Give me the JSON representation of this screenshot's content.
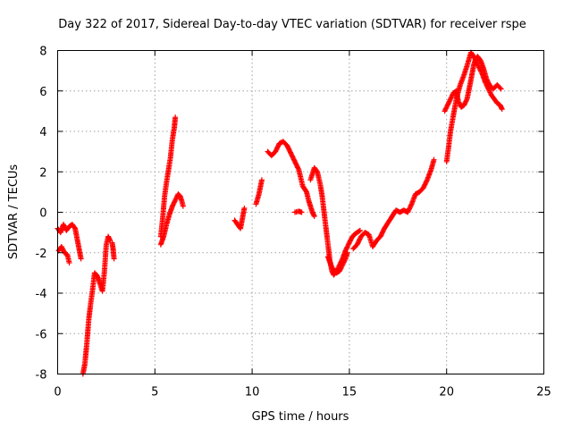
{
  "chart_data": {
    "type": "scatter",
    "title": "Day 322 of 2017, Sidereal Day-to-day VTEC variation (SDTVAR) for receiver rspe",
    "xlabel": "GPS time / hours",
    "ylabel": "SDTVAR / TECUs",
    "xlim": [
      0,
      25
    ],
    "ylim": [
      -8,
      8
    ],
    "x_ticks": [
      0,
      5,
      10,
      15,
      20,
      25
    ],
    "x_tick_labels": [
      "0",
      "5",
      "10",
      "15",
      "20",
      "25"
    ],
    "y_ticks": [
      -8,
      -6,
      -4,
      -2,
      0,
      2,
      4,
      6,
      8
    ],
    "y_tick_labels": [
      "-8",
      "-6",
      "-4",
      "-2",
      "0",
      "2",
      "4",
      "6",
      "8"
    ],
    "grid": true,
    "marker": "+",
    "series": [
      {
        "name": "SDTVAR",
        "color": "#ff0000",
        "segments": [
          {
            "points": [
              [
                0.0,
                -0.8
              ],
              [
                0.15,
                -1.0
              ],
              [
                0.3,
                -0.6
              ],
              [
                0.45,
                -0.9
              ],
              [
                0.6,
                -0.7
              ],
              [
                0.75,
                -0.6
              ],
              [
                0.9,
                -0.8
              ],
              [
                1.0,
                -1.3
              ],
              [
                1.1,
                -1.8
              ],
              [
                1.2,
                -2.3
              ]
            ]
          },
          {
            "points": [
              [
                0.05,
                -1.9
              ],
              [
                0.2,
                -1.7
              ],
              [
                0.35,
                -2.0
              ],
              [
                0.5,
                -2.1
              ],
              [
                0.6,
                -2.5
              ]
            ]
          },
          {
            "points": [
              [
                1.3,
                -8.0
              ],
              [
                1.4,
                -7.5
              ],
              [
                1.5,
                -6.5
              ],
              [
                1.6,
                -5.3
              ],
              [
                1.7,
                -4.5
              ],
              [
                1.8,
                -3.8
              ],
              [
                1.9,
                -3.0
              ],
              [
                2.0,
                -3.1
              ],
              [
                2.1,
                -3.3
              ],
              [
                2.2,
                -3.6
              ],
              [
                2.3,
                -3.9
              ],
              [
                2.4,
                -3.0
              ],
              [
                2.5,
                -1.6
              ],
              [
                2.6,
                -1.2
              ],
              [
                2.7,
                -1.4
              ]
            ]
          },
          {
            "points": [
              [
                2.8,
                -1.5
              ],
              [
                2.85,
                -1.8
              ],
              [
                2.9,
                -2.3
              ]
            ]
          },
          {
            "points": [
              [
                5.3,
                -1.2
              ],
              [
                5.4,
                -0.3
              ],
              [
                5.5,
                0.8
              ],
              [
                5.6,
                1.5
              ],
              [
                5.7,
                2.1
              ],
              [
                5.8,
                2.7
              ],
              [
                5.9,
                3.6
              ],
              [
                6.0,
                4.2
              ],
              [
                6.05,
                4.7
              ]
            ]
          },
          {
            "points": [
              [
                5.3,
                -1.6
              ],
              [
                5.45,
                -1.2
              ],
              [
                5.6,
                -0.6
              ],
              [
                5.75,
                -0.1
              ],
              [
                5.9,
                0.3
              ],
              [
                6.05,
                0.6
              ],
              [
                6.2,
                0.9
              ],
              [
                6.3,
                0.8
              ],
              [
                6.4,
                0.5
              ],
              [
                6.45,
                0.3
              ]
            ]
          },
          {
            "points": [
              [
                9.1,
                -0.4
              ],
              [
                9.25,
                -0.6
              ],
              [
                9.4,
                -0.8
              ],
              [
                9.5,
                -0.3
              ],
              [
                9.6,
                0.2
              ]
            ]
          },
          {
            "points": [
              [
                10.2,
                0.4
              ],
              [
                10.35,
                0.9
              ],
              [
                10.5,
                1.6
              ]
            ]
          },
          {
            "points": [
              [
                10.8,
                3.0
              ],
              [
                11.0,
                2.8
              ],
              [
                11.2,
                3.0
              ],
              [
                11.4,
                3.4
              ],
              [
                11.6,
                3.5
              ],
              [
                11.8,
                3.3
              ],
              [
                12.0,
                2.9
              ],
              [
                12.2,
                2.5
              ],
              [
                12.4,
                2.1
              ],
              [
                12.5,
                1.7
              ],
              [
                12.6,
                1.3
              ],
              [
                12.8,
                1.0
              ],
              [
                12.9,
                0.6
              ],
              [
                13.0,
                0.3
              ],
              [
                13.1,
                0.0
              ],
              [
                13.2,
                -0.2
              ]
            ]
          },
          {
            "points": [
              [
                12.2,
                0.0
              ],
              [
                12.4,
                0.05
              ],
              [
                12.55,
                0.0
              ]
            ]
          },
          {
            "points": [
              [
                13.0,
                1.6
              ],
              [
                13.2,
                2.2
              ],
              [
                13.35,
                2.0
              ],
              [
                13.5,
                1.4
              ],
              [
                13.6,
                0.8
              ],
              [
                13.7,
                0.0
              ],
              [
                13.8,
                -0.8
              ],
              [
                13.9,
                -1.6
              ],
              [
                14.0,
                -2.4
              ],
              [
                14.1,
                -2.9
              ],
              [
                14.2,
                -3.1
              ],
              [
                14.35,
                -2.9
              ],
              [
                14.5,
                -2.6
              ],
              [
                14.65,
                -2.3
              ],
              [
                14.8,
                -1.9
              ],
              [
                14.95,
                -1.6
              ],
              [
                15.1,
                -1.3
              ],
              [
                15.25,
                -1.1
              ],
              [
                15.4,
                -1.0
              ],
              [
                15.55,
                -0.9
              ]
            ]
          },
          {
            "points": [
              [
                13.9,
                -2.2
              ],
              [
                14.05,
                -2.6
              ],
              [
                14.2,
                -2.9
              ],
              [
                14.35,
                -3.0
              ],
              [
                14.5,
                -2.9
              ],
              [
                14.65,
                -2.6
              ],
              [
                14.8,
                -2.3
              ],
              [
                14.9,
                -2.0
              ]
            ]
          },
          {
            "points": [
              [
                15.2,
                -1.8
              ],
              [
                15.4,
                -1.6
              ],
              [
                15.6,
                -1.2
              ],
              [
                15.8,
                -1.0
              ],
              [
                16.0,
                -1.1
              ],
              [
                16.2,
                -1.7
              ],
              [
                16.4,
                -1.4
              ],
              [
                16.6,
                -1.2
              ],
              [
                16.8,
                -0.8
              ],
              [
                17.0,
                -0.5
              ],
              [
                17.2,
                -0.2
              ],
              [
                17.4,
                0.1
              ],
              [
                17.6,
                0.0
              ],
              [
                17.8,
                0.1
              ],
              [
                18.0,
                0.0
              ],
              [
                18.2,
                0.4
              ],
              [
                18.4,
                0.9
              ],
              [
                18.6,
                1.0
              ],
              [
                18.8,
                1.2
              ],
              [
                19.0,
                1.6
              ],
              [
                19.2,
                2.1
              ],
              [
                19.35,
                2.6
              ]
            ]
          },
          {
            "points": [
              [
                19.9,
                5.0
              ],
              [
                20.05,
                5.3
              ],
              [
                20.2,
                5.6
              ],
              [
                20.35,
                5.9
              ],
              [
                20.5,
                6.0
              ],
              [
                20.6,
                5.5
              ],
              [
                20.75,
                5.2
              ],
              [
                20.9,
                5.3
              ],
              [
                21.05,
                5.6
              ],
              [
                21.2,
                6.3
              ],
              [
                21.3,
                6.8
              ],
              [
                21.4,
                7.3
              ],
              [
                21.5,
                7.6
              ],
              [
                21.6,
                7.7
              ],
              [
                21.75,
                7.5
              ],
              [
                21.9,
                7.1
              ],
              [
                22.05,
                6.6
              ],
              [
                22.2,
                6.3
              ],
              [
                22.4,
                6.1
              ],
              [
                22.6,
                6.3
              ],
              [
                22.8,
                6.1
              ]
            ]
          },
          {
            "points": [
              [
                20.0,
                2.5
              ],
              [
                20.1,
                3.2
              ],
              [
                20.2,
                4.0
              ],
              [
                20.35,
                4.8
              ],
              [
                20.5,
                5.6
              ],
              [
                20.7,
                6.3
              ],
              [
                20.9,
                6.8
              ],
              [
                21.1,
                7.4
              ],
              [
                21.25,
                7.9
              ],
              [
                21.4,
                7.7
              ],
              [
                21.55,
                7.4
              ],
              [
                21.7,
                7.1
              ],
              [
                21.85,
                6.8
              ],
              [
                22.0,
                6.4
              ],
              [
                22.15,
                6.1
              ],
              [
                22.3,
                5.8
              ],
              [
                22.45,
                5.6
              ],
              [
                22.6,
                5.4
              ],
              [
                22.75,
                5.3
              ],
              [
                22.85,
                5.1
              ]
            ]
          }
        ]
      }
    ]
  }
}
